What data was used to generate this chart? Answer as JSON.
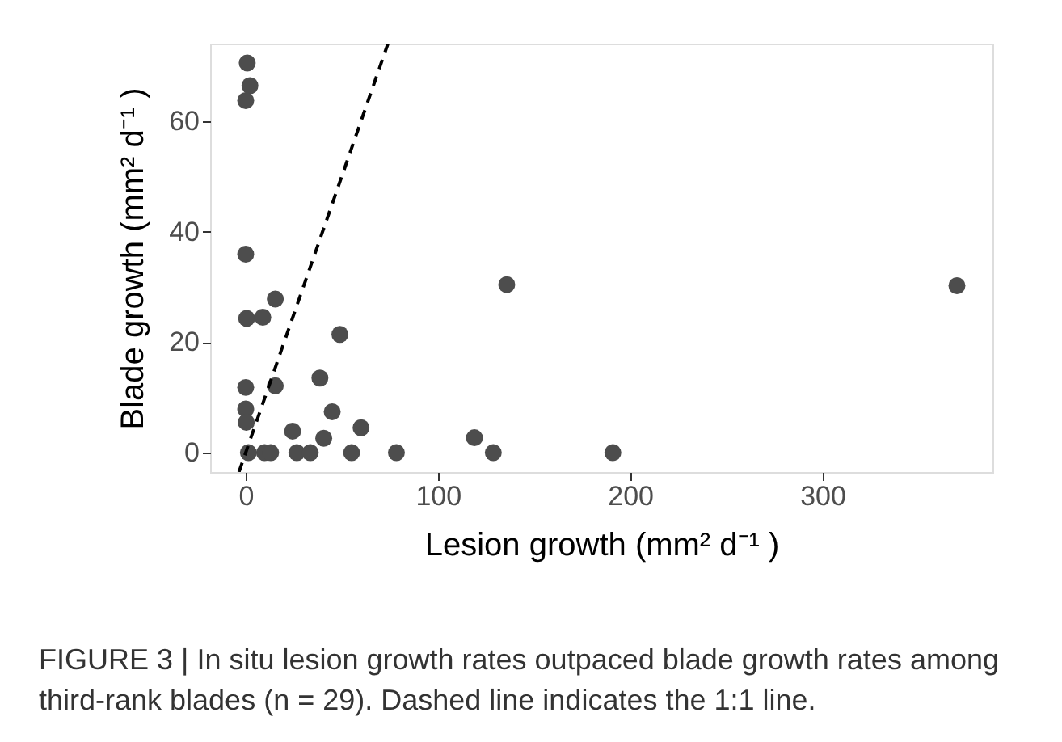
{
  "chart_data": {
    "type": "scatter",
    "xlabel": "Lesion growth (mm² d⁻¹ )",
    "ylabel": "Blade growth (mm² d⁻¹ )",
    "xlim": [
      -18.5,
      388.5
    ],
    "ylim": [
      -3.5,
      74
    ],
    "xticks": [
      0,
      100,
      200,
      300
    ],
    "yticks": [
      0,
      20,
      40,
      60
    ],
    "grid": false,
    "series": [
      {
        "color": "#4d4d4d",
        "marker": "circle",
        "x": [
          0.8,
          2.2,
          0,
          0,
          15.4,
          0.5,
          8.9,
          49,
          0,
          15.4,
          38.6,
          0,
          0.3,
          45,
          24.4,
          60,
          40.6,
          1.4,
          9.8,
          13,
          26.6,
          33.6,
          55.1,
          78.4,
          135.8,
          119,
          128.8,
          191,
          370
        ],
        "values": [
          70.5,
          66.4,
          63.7,
          35.9,
          27.8,
          24.3,
          24.5,
          21.4,
          11.8,
          12.1,
          13.5,
          7.9,
          5.5,
          7.4,
          3.9,
          4.5,
          2.6,
          0,
          0,
          0,
          0,
          0,
          0,
          0,
          30.4,
          2.7,
          0,
          0,
          30.2
        ]
      },
      {
        "type": "line",
        "color": "#000000",
        "line_style": "dashed",
        "marker": "none",
        "x": [
          -3.5,
          74
        ],
        "values": [
          -3.5,
          74
        ]
      }
    ],
    "annotations": [
      "FIGURE 3 | In situ lesion growth rates outpaced blade growth rates among",
      "third-rank blades (n = 29). Dashed line indicates the 1:1 line."
    ]
  }
}
